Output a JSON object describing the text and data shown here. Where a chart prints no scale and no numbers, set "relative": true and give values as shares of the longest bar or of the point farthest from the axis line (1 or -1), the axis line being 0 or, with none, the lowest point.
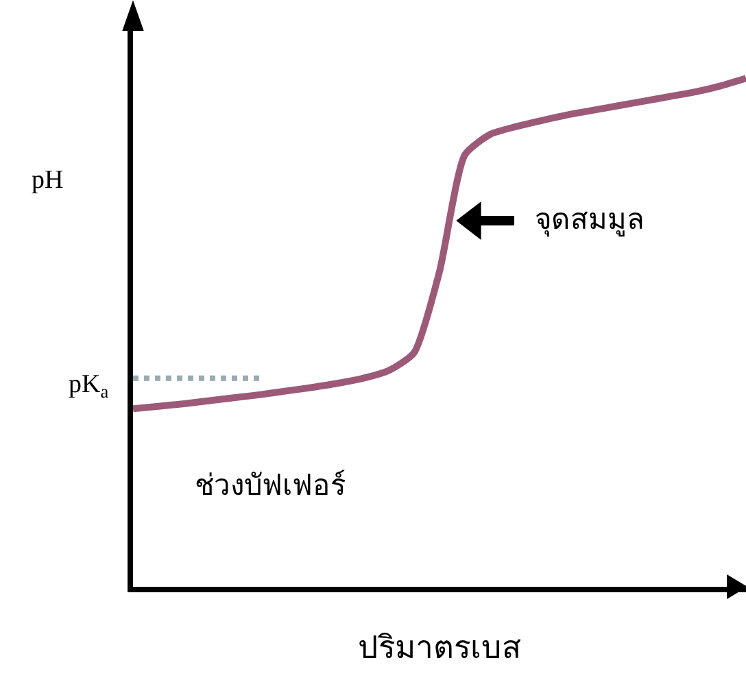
{
  "chart_data": {
    "type": "line",
    "relative": true,
    "ylabel": "pH",
    "xlabel": "ปริมาตรเบส",
    "categories": [
      null,
      null,
      null,
      null,
      null,
      null,
      null,
      null,
      null,
      null,
      null,
      null,
      null,
      null,
      null,
      null,
      null,
      null,
      null,
      null,
      null,
      null,
      null,
      null,
      null
    ],
    "series": [
      {
        "color": "#9c5a78",
        "values": [
          0.35,
          0.355,
          0.36,
          0.366,
          0.372,
          0.378,
          0.385,
          0.392,
          0.4,
          0.41,
          0.425,
          0.46,
          0.62,
          0.85,
          0.89,
          0.905,
          0.917,
          0.928,
          0.937,
          0.946,
          0.955,
          0.964,
          0.973,
          0.985,
          1.0
        ]
      }
    ],
    "ref_lines": [
      {
        "axis": "y",
        "value": 0.41,
        "label": "pK$_{a}$",
        "color": "#9aaab0",
        "line_style": "dotted"
      }
    ],
    "annotations": [
      "จุดสมมูล",
      "ช่วงบัฟเฟอร์"
    ],
    "line_style": "solid"
  }
}
